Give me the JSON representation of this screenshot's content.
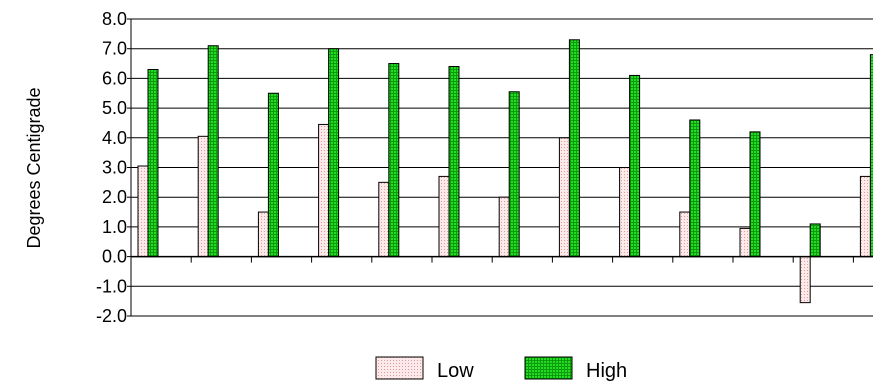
{
  "chart_data": {
    "type": "bar",
    "title": "",
    "xlabel": "",
    "ylabel": "Degrees Centigrade",
    "ylim": [
      -2.0,
      8.0
    ],
    "yticks": [
      "-2.0",
      "-1.0",
      "0.0",
      "1.0",
      "2.0",
      "3.0",
      "4.0",
      "5.0",
      "6.0",
      "7.0",
      "8.0"
    ],
    "categories": [
      "",
      "",
      "",
      "",
      "",
      "",
      "",
      "",
      "",
      "",
      "",
      "",
      ""
    ],
    "grid": true,
    "legend_position": "bottom",
    "series": [
      {
        "name": "Low",
        "color": "#f4c7c7",
        "pattern": "dots",
        "values": [
          3.05,
          4.05,
          1.5,
          4.45,
          2.5,
          2.7,
          2.0,
          4.0,
          3.0,
          1.5,
          0.95,
          -1.55,
          2.7
        ]
      },
      {
        "name": "High",
        "color": "#22dd22",
        "pattern": "grid",
        "values": [
          6.3,
          7.1,
          5.5,
          7.0,
          6.5,
          6.4,
          5.55,
          7.3,
          6.1,
          4.6,
          4.2,
          1.1,
          6.8
        ]
      }
    ]
  }
}
